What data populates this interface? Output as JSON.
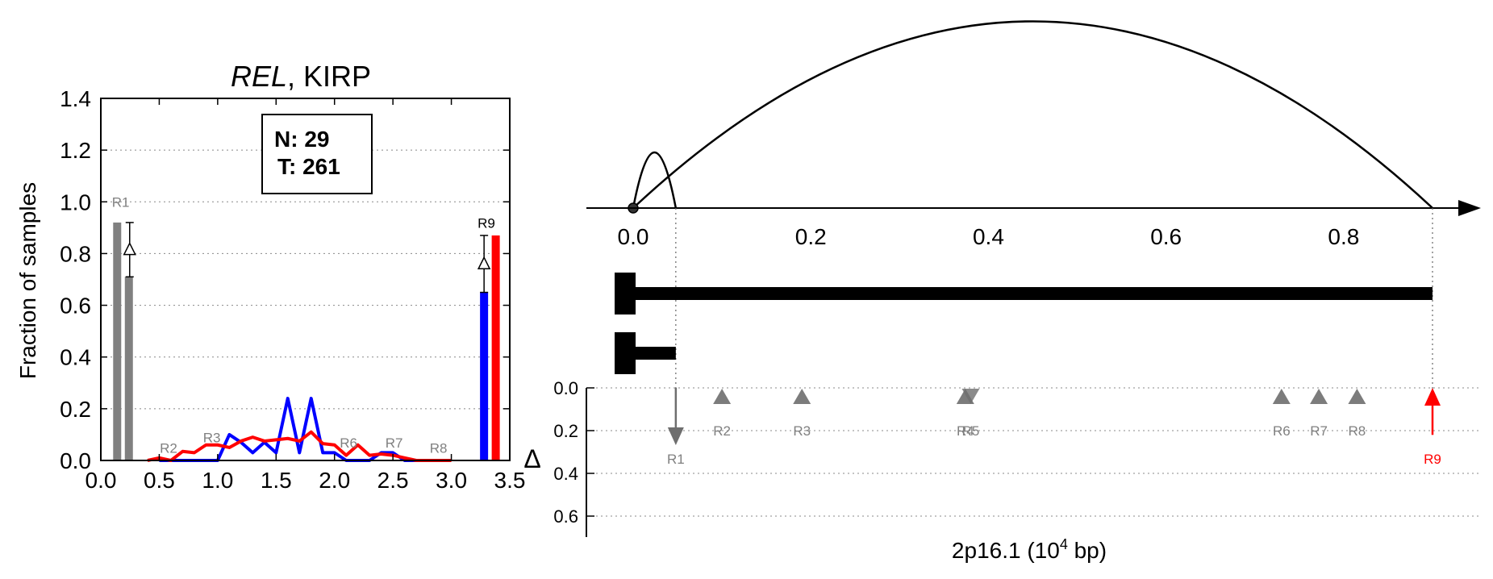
{
  "chart_data": [
    {
      "type": "bar",
      "title_gene": "REL",
      "title_rest": ", KIRP",
      "ylabel": "Fraction of samples",
      "xlim": [
        0.0,
        3.5
      ],
      "ylim": [
        0.0,
        1.4
      ],
      "x_ticks": [
        "0.0",
        "0.5",
        "1.0",
        "1.5",
        "2.0",
        "2.5",
        "3.0",
        "3.5"
      ],
      "y_ticks": [
        "0.0",
        "0.2",
        "0.4",
        "0.6",
        "0.8",
        "1.0",
        "1.2",
        "1.4"
      ],
      "grid": "y-dotted",
      "stats_box": {
        "n_label": "N: 29",
        "t_label": "T: 261"
      },
      "bars": [
        {
          "name": "R1 normal",
          "x": 0.14,
          "value": 0.92,
          "color": "#808080"
        },
        {
          "name": "R1 tumor",
          "x": 0.24,
          "value": 0.71,
          "color": "#808080"
        },
        {
          "name": "R9 normal",
          "x": 3.28,
          "value": 0.65,
          "color": "#0000ff"
        },
        {
          "name": "R9 tumor",
          "x": 3.38,
          "value": 0.87,
          "color": "#ff0000"
        }
      ],
      "delta_markers": [
        {
          "x": 0.24,
          "low": 0.71,
          "high": 0.92,
          "mid": 0.815
        },
        {
          "x": 3.28,
          "low": 0.65,
          "high": 0.87,
          "mid": 0.76
        }
      ],
      "region_labels": [
        {
          "text": "R1",
          "x": 0.17,
          "y": 0.98,
          "color": "#808080"
        },
        {
          "text": "R2",
          "x": 0.58,
          "y": 0.03,
          "color": "#808080"
        },
        {
          "text": "R3",
          "x": 0.95,
          "y": 0.07,
          "color": "#808080"
        },
        {
          "text": "R6",
          "x": 2.12,
          "y": 0.05,
          "color": "#808080"
        },
        {
          "text": "R7",
          "x": 2.51,
          "y": 0.05,
          "color": "#808080"
        },
        {
          "text": "R8",
          "x": 2.89,
          "y": 0.03,
          "color": "#808080"
        },
        {
          "text": "R9",
          "x": 3.3,
          "y": 0.9,
          "color": "#000000"
        }
      ],
      "series": [
        {
          "name": "normal",
          "color": "#0000ff",
          "x": [
            0.5,
            0.6,
            0.7,
            0.8,
            0.9,
            1.0,
            1.1,
            1.2,
            1.3,
            1.4,
            1.5,
            1.6,
            1.7,
            1.8,
            1.9,
            2.0,
            2.1,
            2.2,
            2.3,
            2.4,
            2.5,
            2.6,
            2.7,
            2.8,
            2.9
          ],
          "values": [
            0.0,
            0.0,
            0.0,
            0.0,
            0.0,
            0.0,
            0.1,
            0.07,
            0.03,
            0.07,
            0.03,
            0.24,
            0.03,
            0.24,
            0.03,
            0.03,
            0.0,
            0.0,
            0.0,
            0.03,
            0.03,
            0.0,
            0.0,
            0.0,
            0.0
          ]
        },
        {
          "name": "tumor",
          "color": "#ff0000",
          "x": [
            0.4,
            0.5,
            0.6,
            0.7,
            0.8,
            0.9,
            1.0,
            1.1,
            1.2,
            1.3,
            1.4,
            1.5,
            1.6,
            1.7,
            1.8,
            1.9,
            2.0,
            2.1,
            2.2,
            2.3,
            2.4,
            2.5,
            2.6,
            2.7,
            2.8,
            2.9,
            3.0
          ],
          "values": [
            0.0,
            0.01,
            0.0,
            0.035,
            0.03,
            0.06,
            0.06,
            0.05,
            0.075,
            0.09,
            0.075,
            0.08,
            0.085,
            0.075,
            0.11,
            0.065,
            0.06,
            0.02,
            0.06,
            0.02,
            0.025,
            0.02,
            0.01,
            0.0,
            0.0,
            0.0,
            0.0
          ]
        }
      ]
    },
    {
      "type": "diagram",
      "xlabel_base": "2p16.1 (10",
      "xlabel_sup": "4",
      "xlabel_tail": " bp)",
      "ylabel": "Δ",
      "xlim": [
        0.0,
        0.9
      ],
      "x_ticks": [
        "0.0",
        "0.2",
        "0.4",
        "0.6",
        "0.8"
      ],
      "arcs": [
        {
          "from": 0.0,
          "to": 0.048,
          "height": "small"
        },
        {
          "from": 0.0,
          "to": 0.9,
          "height": "large"
        }
      ],
      "transcripts": [
        {
          "name": "long isoform",
          "start": 0.0,
          "end": 0.9
        },
        {
          "name": "short isoform",
          "start": 0.0,
          "end": 0.048
        }
      ],
      "delta_ylim": [
        0.0,
        0.6
      ],
      "delta_ticks": [
        "0.0",
        "0.2",
        "0.4",
        "0.6"
      ],
      "regions": [
        {
          "label": "R1",
          "x": 0.048,
          "delta": 0.2,
          "style": "arrow-down",
          "color": "#808080"
        },
        {
          "label": "R2",
          "x": 0.1,
          "delta": 0.0,
          "style": "triangle-up",
          "color": "#808080"
        },
        {
          "label": "R3",
          "x": 0.19,
          "delta": 0.0,
          "style": "triangle-up",
          "color": "#808080"
        },
        {
          "label": "R4",
          "x": 0.374,
          "delta": 0.0,
          "style": "triangle-up",
          "color": "#808080"
        },
        {
          "label": "R5",
          "x": 0.38,
          "delta": 0.0,
          "style": "triangle-down",
          "color": "#808080"
        },
        {
          "label": "R6",
          "x": 0.73,
          "delta": 0.0,
          "style": "triangle-up",
          "color": "#808080"
        },
        {
          "label": "R7",
          "x": 0.772,
          "delta": 0.0,
          "style": "triangle-up",
          "color": "#808080"
        },
        {
          "label": "R8",
          "x": 0.815,
          "delta": 0.0,
          "style": "triangle-up",
          "color": "#808080"
        },
        {
          "label": "R9",
          "x": 0.9,
          "delta": 0.22,
          "style": "arrow-up",
          "color": "#ff0000"
        }
      ]
    }
  ]
}
